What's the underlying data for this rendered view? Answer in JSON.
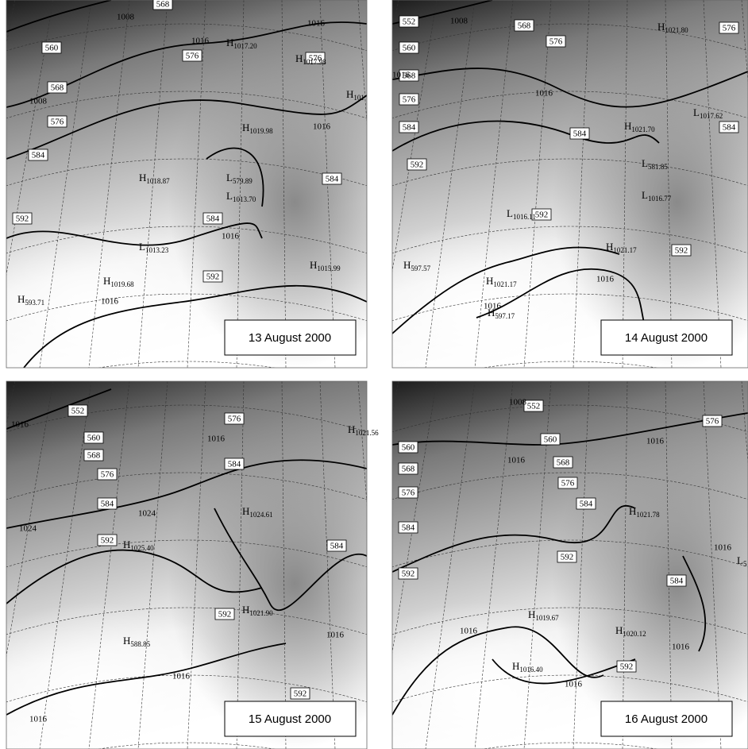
{
  "panels": [
    {
      "date": "13 August 2000",
      "boxes": [
        "560",
        "568",
        "576",
        "584",
        "592",
        "568",
        "576",
        "576",
        "584",
        "584",
        "592"
      ],
      "centers": [
        {
          "kind": "H",
          "value": "1017.20"
        },
        {
          "kind": "H",
          "value": "1017.98"
        },
        {
          "kind": "H",
          "value": "1019.98"
        },
        {
          "kind": "H",
          "value": "1018.87"
        },
        {
          "kind": "L",
          "value": "579.89"
        },
        {
          "kind": "L",
          "value": "1013.70"
        },
        {
          "kind": "L",
          "value": "1013.23"
        },
        {
          "kind": "H",
          "value": "1019.68"
        },
        {
          "kind": "H",
          "value": "593.71"
        },
        {
          "kind": "H",
          "value": "1015.99"
        },
        {
          "kind": "H",
          "value": "101"
        }
      ],
      "isobars": [
        "1008",
        "1016",
        "1016",
        "1008",
        "1016",
        "1016",
        "1016"
      ]
    },
    {
      "date": "14 August 2000",
      "boxes": [
        "552",
        "560",
        "568",
        "576",
        "584",
        "592",
        "568",
        "576",
        "576",
        "584",
        "584",
        "592",
        "592"
      ],
      "centers": [
        {
          "kind": "H",
          "value": "1021.80"
        },
        {
          "kind": "L",
          "value": "1017.62"
        },
        {
          "kind": "H",
          "value": "1021.70"
        },
        {
          "kind": "L",
          "value": "581.85"
        },
        {
          "kind": "L",
          "value": "1016.77"
        },
        {
          "kind": "L",
          "value": "1016.11"
        },
        {
          "kind": "H",
          "value": "1021.17"
        },
        {
          "kind": "H",
          "value": "597.57"
        },
        {
          "kind": "H",
          "value": "1021.17"
        },
        {
          "kind": "H",
          "value": "597.17"
        }
      ],
      "isobars": [
        "1008",
        "1016",
        "1016",
        "1016",
        "1016"
      ]
    },
    {
      "date": "15 August 2000",
      "boxes": [
        "552",
        "560",
        "568",
        "576",
        "584",
        "592",
        "576",
        "584",
        "584",
        "592",
        "592"
      ],
      "centers": [
        {
          "kind": "H",
          "value": "1021.56"
        },
        {
          "kind": "H",
          "value": "1024.61"
        },
        {
          "kind": "H",
          "value": "1025.40"
        },
        {
          "kind": "H",
          "value": "1021.90"
        },
        {
          "kind": "H",
          "value": "588.85"
        }
      ],
      "isobars": [
        "1016",
        "1016",
        "1024",
        "1024",
        "1016",
        "1016",
        "1016"
      ]
    },
    {
      "date": "16 August 2000",
      "boxes": [
        "552",
        "576",
        "560",
        "560",
        "568",
        "568",
        "576",
        "576",
        "584",
        "584",
        "592",
        "592",
        "584",
        "592"
      ],
      "centers": [
        {
          "kind": "H",
          "value": "1021.78"
        },
        {
          "kind": "H",
          "value": "1019.67"
        },
        {
          "kind": "H",
          "value": "1020.12"
        },
        {
          "kind": "H",
          "value": "1016.40"
        },
        {
          "kind": "L",
          "value": "5"
        }
      ],
      "isobars": [
        "1008",
        "1016",
        "1016",
        "1016",
        "1016",
        "1016",
        "1016"
      ]
    }
  ]
}
